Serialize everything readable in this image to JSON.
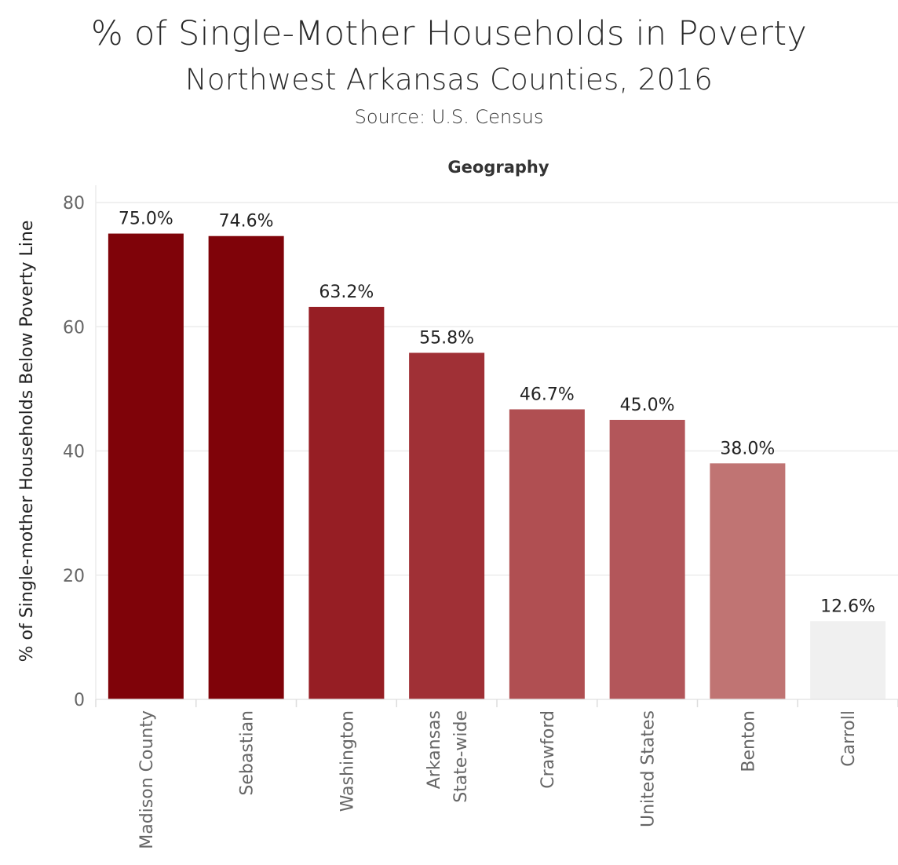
{
  "chart_data": {
    "type": "bar",
    "title": "% of Single-Mother Households in Poverty",
    "subtitle": "Northwest Arkansas Counties, 2016",
    "source": "Source: U.S. Census",
    "column_header": "Geography",
    "ylabel": "% of Single-mother Households Below Poverty Line",
    "ylim": [
      0,
      80
    ],
    "yticks": [
      0,
      20,
      40,
      60,
      80
    ],
    "categories": [
      [
        "Madison County"
      ],
      [
        "Sebastian"
      ],
      [
        "Washington"
      ],
      [
        "Arkansas",
        "State-wide"
      ],
      [
        "Crawford"
      ],
      [
        "United States"
      ],
      [
        "Benton"
      ],
      [
        "Carroll"
      ]
    ],
    "values": [
      75.0,
      74.6,
      63.2,
      55.8,
      46.7,
      45.0,
      38.0,
      12.6
    ],
    "value_labels": [
      "75.0%",
      "74.6%",
      "63.2%",
      "55.8%",
      "46.7%",
      "45.0%",
      "38.0%",
      "12.6%"
    ],
    "colors": [
      "#7f0309",
      "#7f0309",
      "#961e24",
      "#a03036",
      "#b04f52",
      "#b3565a",
      "#c07473",
      "#f0f0f0"
    ],
    "grid": true,
    "legend": "none"
  }
}
